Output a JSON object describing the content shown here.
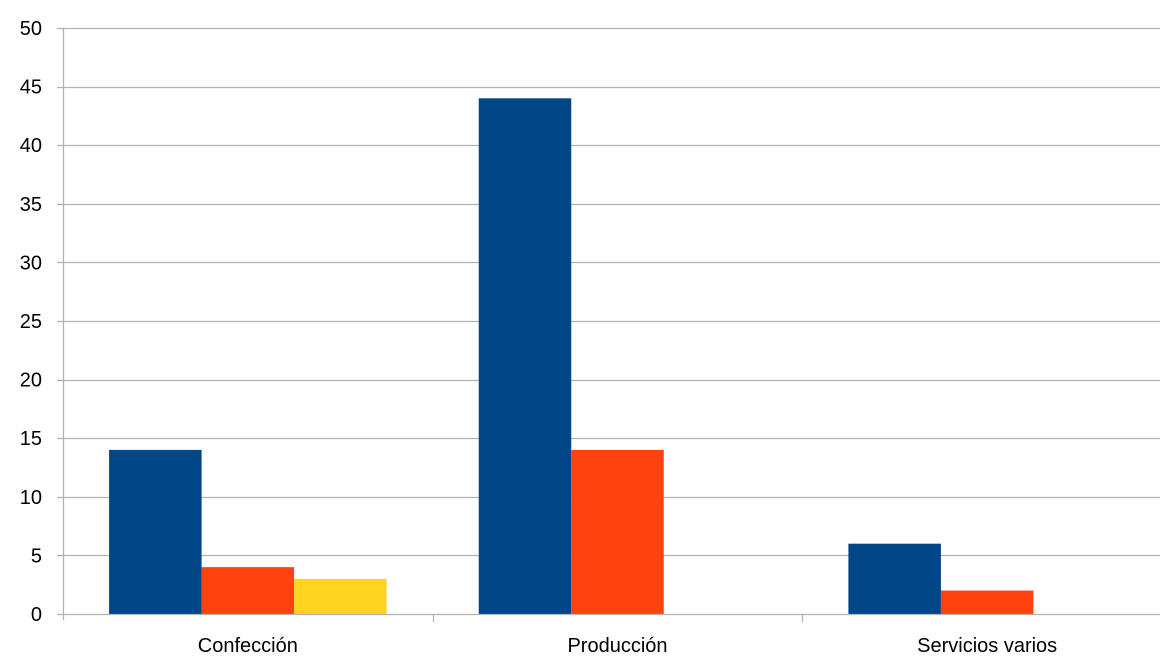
{
  "chart_data": {
    "type": "bar",
    "categories": [
      "Confección",
      "Producción",
      "Servicios varios"
    ],
    "series": [
      {
        "values": [
          14,
          44,
          6
        ],
        "color": "#004586"
      },
      {
        "values": [
          4,
          14,
          2
        ],
        "color": "#FF420E"
      },
      {
        "values": [
          3,
          0,
          0
        ],
        "color": "#FFD320"
      }
    ],
    "ylim": [
      0,
      50
    ],
    "yticks": [
      0,
      5,
      10,
      15,
      20,
      25,
      30,
      35,
      40,
      45,
      50
    ],
    "grid": true,
    "legend": "none",
    "gridline_color": "#B3B3B3",
    "axis_color": "#B3B3B3"
  }
}
